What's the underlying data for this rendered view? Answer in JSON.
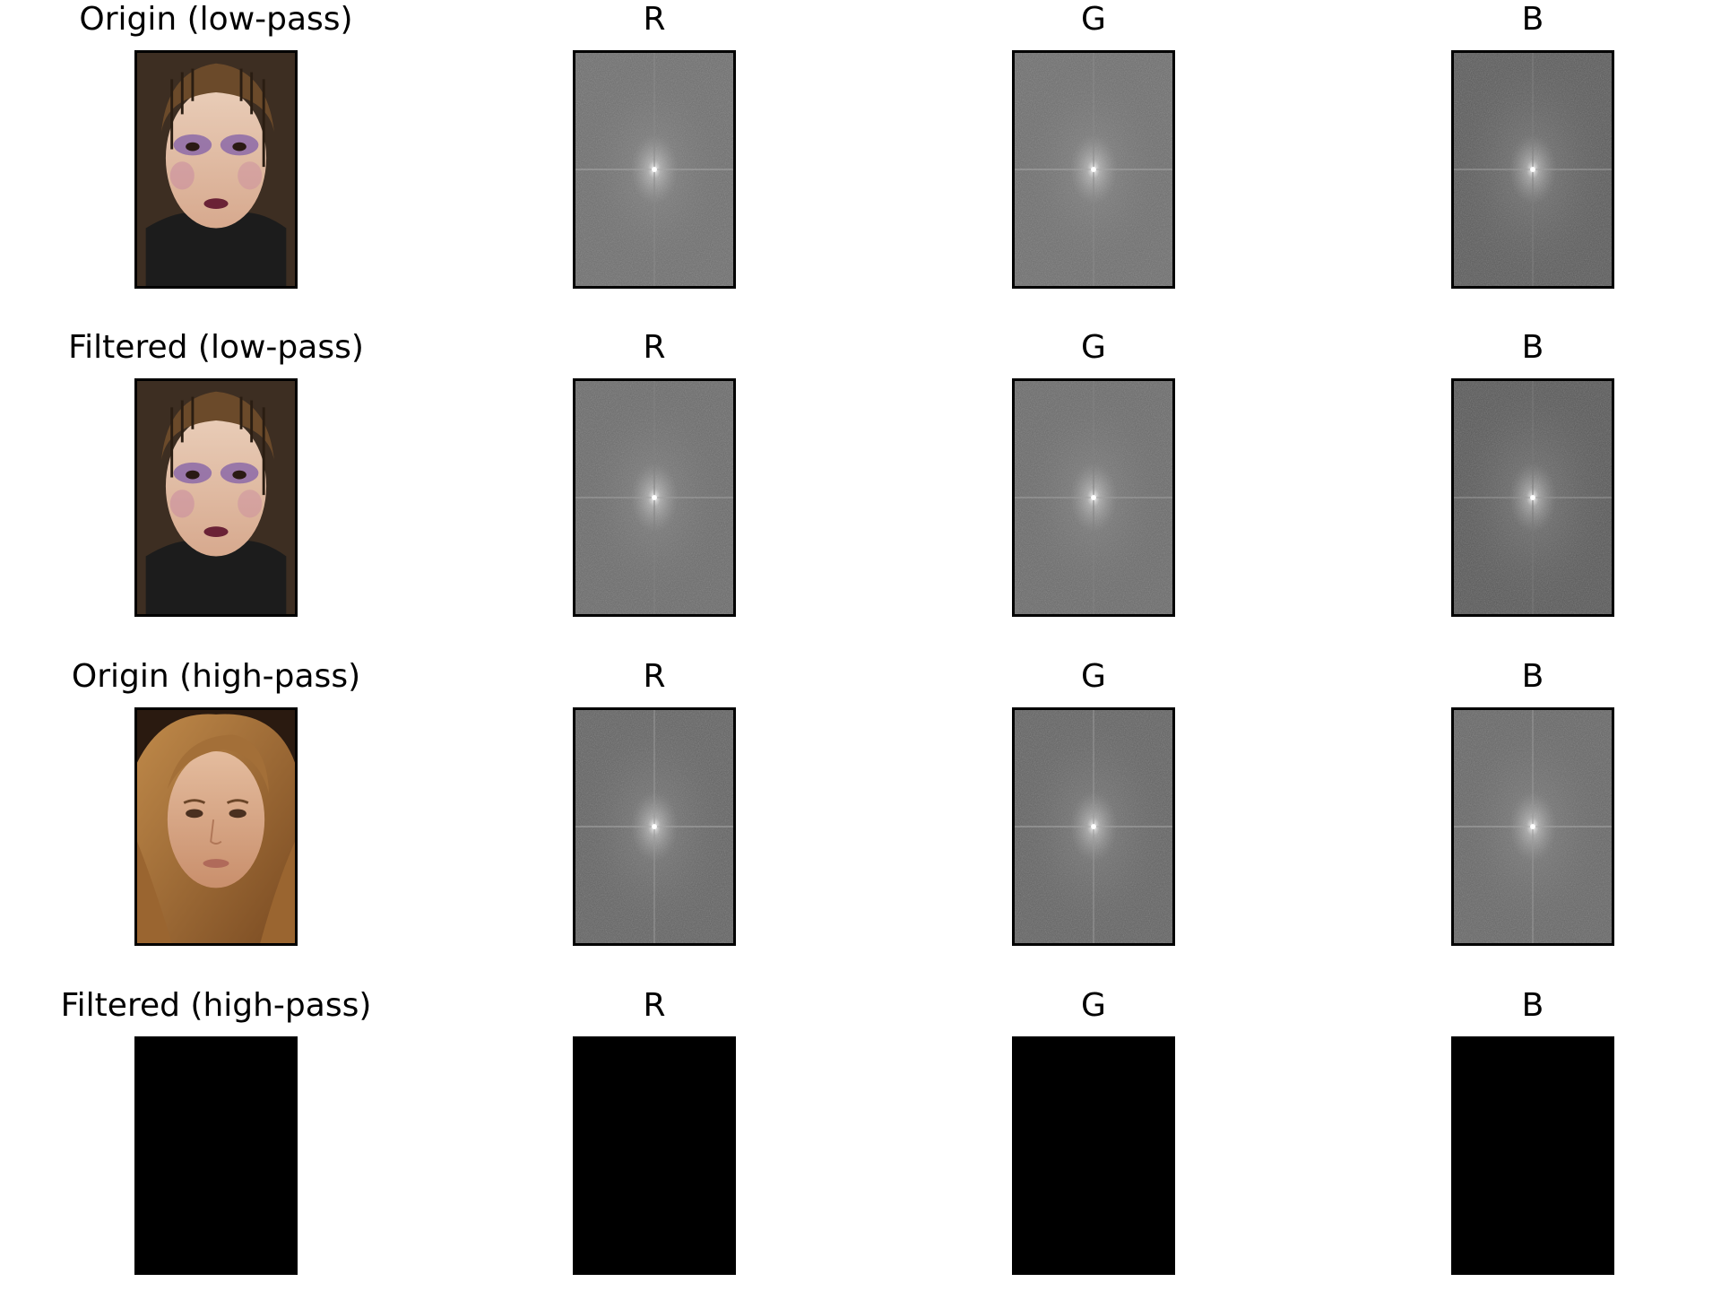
{
  "rows": [
    {
      "title": "Origin (low-pass)",
      "image": "portrait-dramatic-makeup",
      "channels": [
        {
          "title": "R",
          "spectrum": "fft-magnitude-spectrum"
        },
        {
          "title": "G",
          "spectrum": "fft-magnitude-spectrum"
        },
        {
          "title": "B",
          "spectrum": "fft-magnitude-spectrum"
        }
      ]
    },
    {
      "title": "Filtered (low-pass)",
      "image": "portrait-dramatic-makeup",
      "channels": [
        {
          "title": "R",
          "spectrum": "fft-magnitude-spectrum"
        },
        {
          "title": "G",
          "spectrum": "fft-magnitude-spectrum"
        },
        {
          "title": "B",
          "spectrum": "fft-magnitude-spectrum"
        }
      ]
    },
    {
      "title": "Origin (high-pass)",
      "image": "portrait-natural-makeup",
      "channels": [
        {
          "title": "R",
          "spectrum": "fft-magnitude-spectrum"
        },
        {
          "title": "G",
          "spectrum": "fft-magnitude-spectrum"
        },
        {
          "title": "B",
          "spectrum": "fft-magnitude-spectrum"
        }
      ]
    },
    {
      "title": "Filtered (high-pass)",
      "image": "black-image",
      "channels": [
        {
          "title": "R",
          "spectrum": "black-image"
        },
        {
          "title": "G",
          "spectrum": "black-image"
        },
        {
          "title": "B",
          "spectrum": "black-image"
        }
      ]
    }
  ],
  "colors": {
    "spectrum_bg": "#6e6e6e",
    "spectrum_bg_dark": "#5a5a5a",
    "filtered_bg": "#000000",
    "frame": "#000000"
  }
}
